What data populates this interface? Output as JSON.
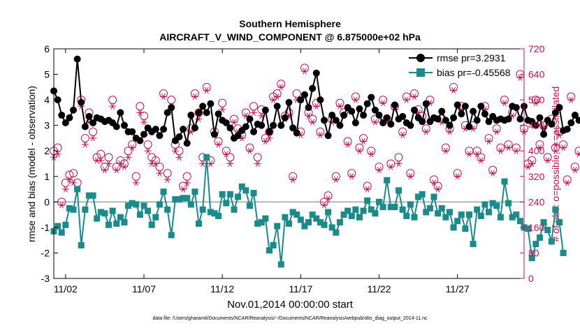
{
  "colors": {
    "rmse": "#000000",
    "bias": "#1a8a8a",
    "obs": "#c8104f",
    "zero": "#b3b3b3"
  },
  "chart_data": {
    "type": "line",
    "title": "Southern Hemisphere",
    "subtitle": "AIRCRAFT_V_WIND_COMPONENT @ 6.875000e+02 hPa",
    "xlabel": "Nov.01,2014 00:00:00 start",
    "ylabel_left": "rmse and bias (model - observation)",
    "ylabel_right": "# of obs: o=possible; ∗=assimilated",
    "footer": "data file: /Users/gharamti/Documents/NCAR/Reanalysis/~/Documents/NCAR/Reanalysis/webpub/obs_diag_output_2014-11.nc",
    "x_tick_labels": [
      "11/02",
      "11/07",
      "11/12",
      "11/17",
      "11/22",
      "11/27"
    ],
    "x_tick_values": [
      1,
      6,
      11,
      16,
      21,
      26
    ],
    "xlim": [
      0.25,
      30.25
    ],
    "ylim_left": [
      -3,
      6
    ],
    "ylim_right": [
      0,
      720
    ],
    "y_ticks_left": [
      "-3",
      "-2",
      "-1",
      "0",
      "1",
      "2",
      "3",
      "4",
      "5",
      "6"
    ],
    "y_ticks_right": [
      "0",
      "80",
      "160",
      "240",
      "320",
      "400",
      "480",
      "560",
      "640",
      "720"
    ],
    "legend": {
      "position": "top-right",
      "entries": [
        "rmse pr=3.2931",
        "bias pr=-0.45568"
      ]
    },
    "x_step_days": 0.25,
    "series": [
      {
        "name": "rmse",
        "values": [
          4.35,
          4.0,
          3.4,
          3.1,
          3.3,
          3.6,
          5.6,
          3.9,
          2.95,
          3.35,
          3.1,
          3.3,
          3.25,
          3.15,
          3.2,
          3.1,
          2.95,
          3.5,
          3.0,
          2.75,
          2.75,
          2.5,
          2.4,
          2.65,
          2.9,
          2.75,
          2.85,
          2.6,
          2.85,
          3.5,
          3.7,
          2.4,
          2.55,
          2.85,
          2.3,
          3.4,
          2.9,
          3.5,
          3.75,
          3.5,
          3.85,
          2.65,
          3.45,
          3.2,
          3.1,
          2.9,
          2.5,
          2.6,
          2.8,
          2.95,
          3.25,
          2.75,
          3.05,
          3.0,
          3.6,
          2.75,
          3.0,
          3.75,
          3.0,
          3.3,
          3.9,
          2.9,
          2.7,
          4.0,
          4.2,
          3.7,
          4.45,
          5.05,
          4.0,
          3.2,
          2.6,
          3.4,
          3.2,
          3.0,
          3.4,
          3.7,
          3.55,
          3.1,
          3.65,
          3.4,
          3.85,
          4.1,
          3.6,
          3.4,
          3.1,
          3.3,
          3.05,
          3.8,
          3.25,
          3.35,
          3.1,
          3.0,
          3.6,
          3.3,
          3.15,
          3.85,
          3.15,
          3.3,
          3.25,
          3.55,
          3.2,
          3.0,
          3.3,
          3.8,
          3.45,
          3.75,
          2.95,
          3.55,
          3.2,
          3.75,
          3.45,
          3.15,
          3.35,
          3.2,
          3.25,
          3.2,
          3.25,
          3.75,
          3.7,
          3.25,
          3.75,
          3.2,
          3.15,
          3.0,
          3.3,
          2.65,
          3.2,
          3.05,
          3.5,
          3.7,
          2.8,
          2.85,
          3.1,
          3.4,
          3.2,
          3.25,
          3.8
        ]
      },
      {
        "name": "bias",
        "values": [
          -1.15,
          -0.95,
          -1.2,
          -0.9,
          -0.25,
          -0.3,
          0.5,
          -1.7,
          -0.3,
          0.25,
          0.25,
          -0.65,
          -0.4,
          -0.45,
          -0.9,
          -0.35,
          -0.85,
          -0.6,
          -0.8,
          -0.15,
          -0.05,
          -0.1,
          -0.5,
          -0.15,
          -0.35,
          -0.9,
          -0.6,
          -0.1,
          0.4,
          -0.3,
          -1.3,
          0.1,
          0.1,
          0.15,
          0.15,
          -0.1,
          0.4,
          -0.85,
          -0.3,
          1.75,
          -0.4,
          -0.45,
          -0.55,
          0.3,
          -0.05,
          0.3,
          -0.3,
          0.2,
          0.6,
          0.45,
          -0.15,
          0.35,
          -0.85,
          -0.8,
          -0.65,
          -1.9,
          -1.7,
          -0.95,
          -2.45,
          -0.6,
          -0.85,
          -0.4,
          -0.5,
          -0.7,
          -0.95,
          -0.8,
          -0.5,
          -0.65,
          -0.8,
          -0.9,
          -0.4,
          -1.0,
          -1.2,
          -0.8,
          -0.5,
          -0.35,
          -0.55,
          -0.3,
          -0.6,
          -0.35,
          0.05,
          -0.3,
          -0.45,
          0.0,
          -0.2,
          0.85,
          -0.2,
          -0.2,
          0.45,
          -0.3,
          -0.55,
          -0.1,
          -0.6,
          0.2,
          0.3,
          -0.4,
          -0.25,
          0.2,
          -0.45,
          -0.25,
          -0.6,
          -0.4,
          -1.0,
          -0.75,
          -0.5,
          -1.05,
          -0.5,
          -1.65,
          -0.3,
          -0.55,
          -0.1,
          -0.4,
          -0.05,
          -0.15,
          -0.6,
          0.8,
          -0.05,
          -0.6,
          -0.5,
          -0.75,
          -1.0,
          -1.05,
          -2.2,
          -1.65,
          -1.4,
          -0.8,
          -1.1,
          -1.55,
          -0.3,
          -0.8,
          -2.0
        ]
      },
      {
        "name": "possible",
        "values": [
          400,
          410,
          240,
          300,
          325,
          330,
          300,
          560,
          440,
          520,
          460,
          380,
          390,
          350,
          380,
          560,
          350,
          370,
          360,
          400,
          420,
          320,
          540,
          510,
          420,
          380,
          370,
          350,
          580,
          330,
          560,
          420,
          400,
          290,
          320,
          470,
          580,
          520,
          380,
          600,
          370,
          460,
          430,
          550,
          400,
          380,
          500,
          470,
          450,
          520,
          410,
          540,
          380,
          530,
          440,
          460,
          570,
          580,
          610,
          510,
          520,
          320,
          580,
          460,
          660,
          520,
          500,
          550,
          460,
          240,
          260,
          500,
          320,
          550,
          520,
          430,
          330,
          570,
          410,
          440,
          290,
          400,
          500,
          350,
          560,
          500,
          360,
          540,
          380,
          460,
          570,
          330,
          580,
          530,
          510,
          470,
          560,
          310,
          290,
          500,
          410,
          470,
          600,
          330,
          540,
          480,
          400,
          480,
          400,
          380,
          540,
          440,
          340,
          470,
          410,
          560,
          420,
          520,
          410,
          640,
          470,
          360,
          370,
          560,
          420,
          480,
          380,
          500,
          410,
          460,
          420,
          310,
          570,
          350,
          400
        ]
      },
      {
        "name": "assimilated",
        "values": [
          380,
          390,
          230,
          280,
          310,
          300,
          280,
          540,
          420,
          490,
          440,
          370,
          370,
          340,
          360,
          540,
          340,
          360,
          350,
          380,
          410,
          300,
          520,
          490,
          400,
          360,
          360,
          330,
          570,
          310,
          540,
          400,
          380,
          280,
          300,
          460,
          570,
          500,
          360,
          590,
          360,
          450,
          420,
          530,
          390,
          360,
          490,
          460,
          440,
          510,
          400,
          520,
          360,
          510,
          430,
          440,
          560,
          570,
          600,
          500,
          510,
          310,
          560,
          450,
          650,
          510,
          490,
          540,
          450,
          230,
          250,
          490,
          310,
          540,
          510,
          420,
          320,
          560,
          400,
          430,
          280,
          390,
          490,
          340,
          550,
          490,
          350,
          530,
          360,
          450,
          560,
          320,
          570,
          520,
          500,
          460,
          550,
          300,
          280,
          490,
          400,
          460,
          590,
          320,
          530,
          470,
          390,
          470,
          390,
          370,
          530,
          430,
          330,
          460,
          400,
          550,
          410,
          510,
          400,
          630,
          460,
          350,
          360,
          550,
          410,
          470,
          370,
          490,
          400,
          450,
          410,
          300,
          560,
          340,
          390
        ]
      }
    ]
  }
}
